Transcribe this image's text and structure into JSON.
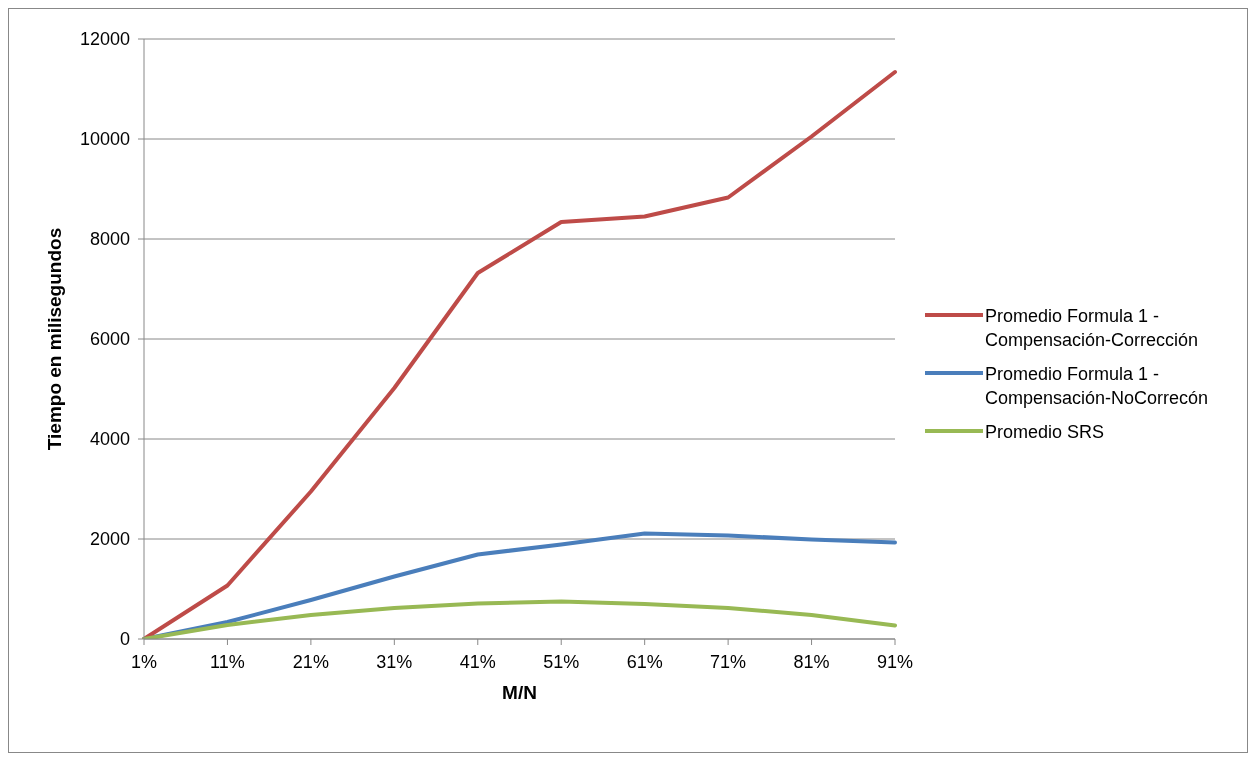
{
  "chart_data": {
    "type": "line",
    "xlabel": "M/N",
    "ylabel": "Tiempo en milisegundos",
    "categories": [
      "1%",
      "11%",
      "21%",
      "31%",
      "41%",
      "51%",
      "61%",
      "71%",
      "81%",
      "91%"
    ],
    "series": [
      {
        "name": "Promedio Formula 1 - Compensación-NoCorrecón",
        "color": "#4a7ebb",
        "values": [
          0,
          340,
          780,
          1250,
          1690,
          1890,
          2110,
          2070,
          1990,
          1930
        ]
      },
      {
        "name": "Promedio Formula 1 - Compensación-Corrección",
        "color": "#be4b48",
        "values": [
          0,
          1070,
          2950,
          5020,
          7320,
          8340,
          8450,
          8830,
          10050,
          11340
        ]
      },
      {
        "name": "Promedio SRS",
        "color": "#98b954",
        "values": [
          0,
          280,
          480,
          620,
          710,
          750,
          700,
          620,
          480,
          270
        ]
      }
    ],
    "ylim": [
      0,
      12000
    ],
    "yticks": [
      0,
      2000,
      4000,
      6000,
      8000,
      10000,
      12000
    ],
    "grid": "y",
    "legend": "right",
    "marker": "none",
    "line_style": "solid"
  }
}
